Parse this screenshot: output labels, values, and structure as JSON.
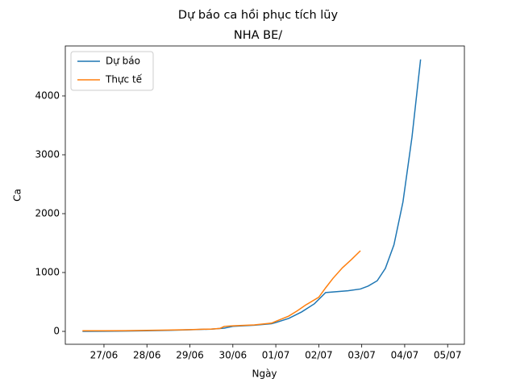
{
  "chart_data": {
    "type": "line",
    "title": "Dự báo ca hồi phục tích lũy",
    "subtitle": "NHA BE/",
    "x_label": "Ngày",
    "y_label": "Ca",
    "xlim": [
      26.1,
      35.39
    ],
    "ylim": [
      -219,
      4849
    ],
    "xticks": [
      {
        "value": 27,
        "label": "27/06"
      },
      {
        "value": 28,
        "label": "28/06"
      },
      {
        "value": 29,
        "label": "29/06"
      },
      {
        "value": 30,
        "label": "30/06"
      },
      {
        "value": 31,
        "label": "01/07"
      },
      {
        "value": 32,
        "label": "02/07"
      },
      {
        "value": 33,
        "label": "03/07"
      },
      {
        "value": 34,
        "label": "04/07"
      },
      {
        "value": 35,
        "label": "05/07"
      }
    ],
    "yticks": [
      0,
      1000,
      2000,
      3000,
      4000
    ],
    "grid": false,
    "legend": "upper left",
    "series": [
      {
        "name": "Dự báo",
        "color": "#1f77b4",
        "x": [
          26.5,
          27,
          27.5,
          28,
          28.5,
          29,
          29.5,
          29.8,
          30,
          30.5,
          30.9,
          31,
          31.3,
          31.6,
          31.9,
          32.16,
          32.68,
          32.97,
          33.15,
          33.36,
          33.55,
          33.75,
          33.96,
          34.17,
          34.37
        ],
        "values": [
          0,
          2,
          5,
          10,
          18,
          28,
          38,
          55,
          85,
          105,
          130,
          150,
          220,
          330,
          470,
          660,
          690,
          720,
          770,
          860,
          1070,
          1470,
          2200,
          3300,
          4620
        ]
      },
      {
        "name": "Thực tế",
        "color": "#ff7f0e",
        "x": [
          26.5,
          27,
          27.5,
          28,
          28.5,
          29,
          29.5,
          29.7,
          29.8,
          30,
          30.5,
          30.9,
          31,
          31.3,
          31.5,
          31.7,
          32,
          32.16,
          32.33,
          32.55,
          32.76,
          32.97
        ],
        "values": [
          10,
          10,
          12,
          18,
          22,
          30,
          40,
          50,
          85,
          95,
          110,
          140,
          170,
          260,
          350,
          450,
          580,
          740,
          900,
          1080,
          1220,
          1370
        ]
      }
    ]
  }
}
